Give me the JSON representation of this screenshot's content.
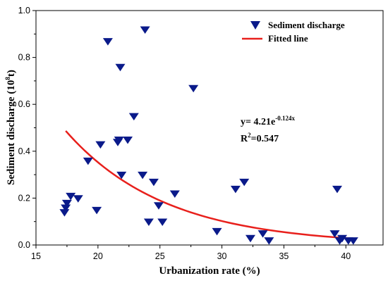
{
  "chart_data": {
    "type": "scatter",
    "xlabel": "Urbanization rate (%)",
    "ylabel_main": "Sediment discharge (10",
    "ylabel_sup": "8",
    "ylabel_tail": "t)",
    "xlim": [
      15,
      43
    ],
    "ylim": [
      0,
      1.0
    ],
    "x_ticks": [
      15,
      20,
      25,
      30,
      35,
      40
    ],
    "x_tick_labels": [
      "15",
      "20",
      "25",
      "30",
      "35",
      "40"
    ],
    "y_ticks": [
      0.0,
      0.2,
      0.4,
      0.6,
      0.8,
      1.0
    ],
    "y_tick_labels": [
      "0.0",
      "0.2",
      "0.4",
      "0.6",
      "0.8",
      "1.0"
    ],
    "series": [
      {
        "name": "Sediment discharge",
        "marker": "triangle-down",
        "color": "#0a1a8a",
        "x": [
          17.3,
          17.4,
          17.5,
          17.8,
          18.4,
          19.2,
          19.9,
          20.2,
          20.8,
          21.6,
          21.7,
          21.8,
          21.9,
          22.4,
          22.9,
          23.6,
          23.8,
          24.1,
          24.5,
          24.9,
          25.2,
          26.2,
          27.7,
          29.6,
          31.1,
          31.8,
          32.3,
          33.3,
          33.8,
          39.1,
          39.3,
          39.5,
          39.7,
          40.2,
          40.6
        ],
        "values": [
          0.14,
          0.16,
          0.18,
          0.21,
          0.2,
          0.36,
          0.15,
          0.43,
          0.87,
          0.44,
          0.45,
          0.76,
          0.3,
          0.45,
          0.55,
          0.3,
          0.92,
          0.1,
          0.27,
          0.17,
          0.1,
          0.22,
          0.67,
          0.06,
          0.24,
          0.27,
          0.03,
          0.05,
          0.02,
          0.05,
          0.24,
          0.02,
          0.03,
          0.02,
          0.02
        ]
      },
      {
        "name": "Fitted line",
        "type": "line",
        "color": "#e8201c",
        "equation_a": 4.21,
        "equation_b": -0.124,
        "x_range": [
          17.4,
          40.6
        ]
      }
    ],
    "legend": {
      "position": "top-right",
      "items": [
        "Sediment discharge",
        "Fitted line"
      ]
    },
    "annotation": {
      "eq_prefix": "y= 4.21e",
      "eq_exponent": "-0.124x",
      "r2_prefix": "R",
      "r2_sup": "2",
      "r2_value": "=0.547"
    }
  }
}
